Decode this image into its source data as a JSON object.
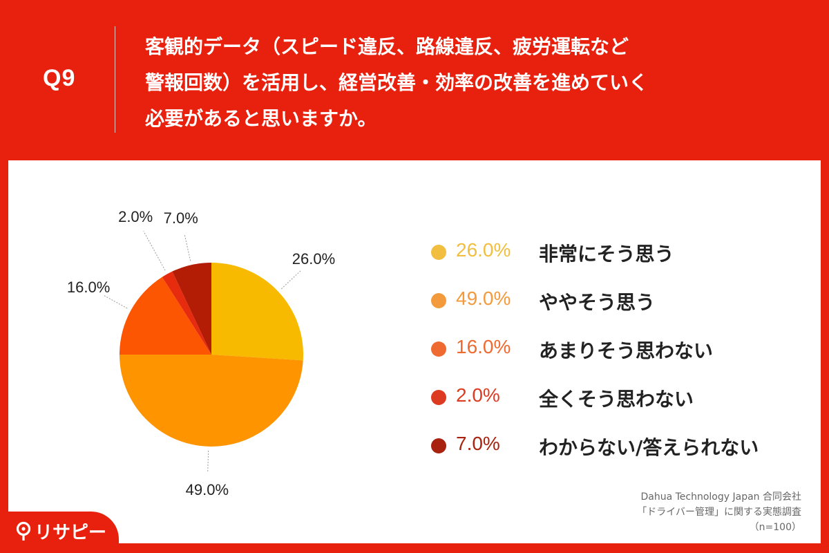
{
  "header": {
    "question_number": "Q9",
    "question_text": "客観的データ（スピード違反、路線違反、疲労運転など\n警報回数）を活用し、経営改善・効率の改善を進めていく\n必要があると思いますか。"
  },
  "chart_data": {
    "type": "pie",
    "title": "",
    "slices": [
      {
        "label": "非常にそう思う",
        "value": 26.0,
        "display": "26.0%",
        "color": "#F7BA00",
        "legend_color": "#F2BE3F"
      },
      {
        "label": "ややそう思う",
        "value": 49.0,
        "display": "49.0%",
        "color": "#FE9400",
        "legend_color": "#F29A3C"
      },
      {
        "label": "あまりそう思わない",
        "value": 16.0,
        "display": "16.0%",
        "color": "#FC5603",
        "legend_color": "#EE6A30"
      },
      {
        "label": "全くそう思わない",
        "value": 2.0,
        "display": "2.0%",
        "color": "#E62B0F",
        "legend_color": "#DD3A22"
      },
      {
        "label": "わからない/答えられない",
        "value": 7.0,
        "display": "7.0%",
        "color": "#B31C05",
        "legend_color": "#A8230F"
      }
    ],
    "start_angle_deg": 0,
    "direction": "clockwise",
    "legend_position": "right"
  },
  "source": {
    "line1": "Dahua Technology Japan 合同会社",
    "line2": "「ドライバー管理」に関する実態調査",
    "line3": "（n=100）"
  },
  "brand": {
    "logo_text": "リサピー",
    "icon": "pin-icon"
  }
}
